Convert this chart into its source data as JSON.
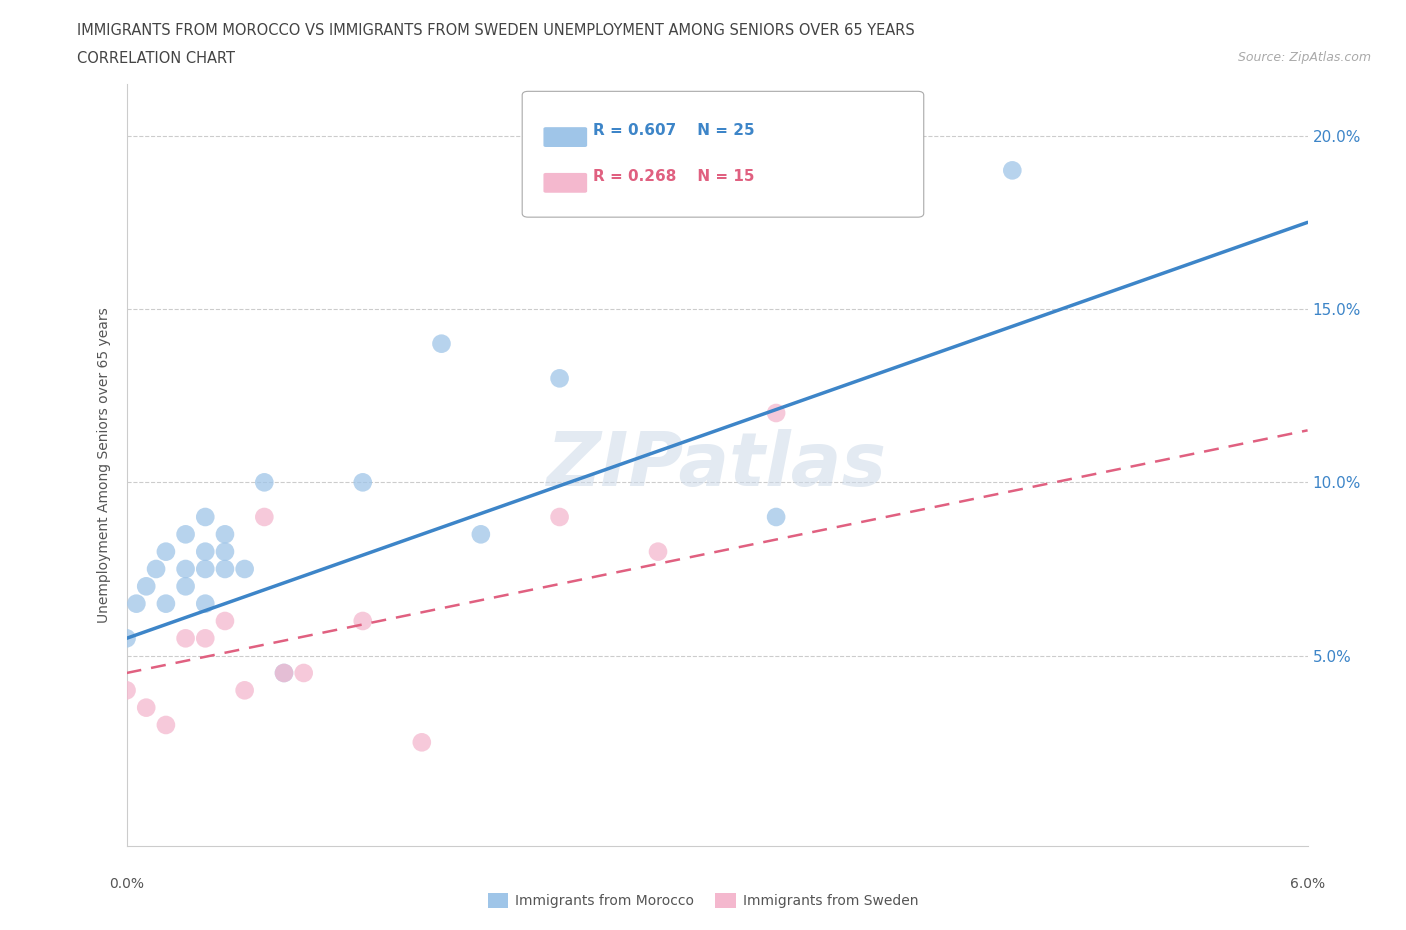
{
  "title_line1": "IMMIGRANTS FROM MOROCCO VS IMMIGRANTS FROM SWEDEN UNEMPLOYMENT AMONG SENIORS OVER 65 YEARS",
  "title_line2": "CORRELATION CHART",
  "source_text": "Source: ZipAtlas.com",
  "ylabel": "Unemployment Among Seniors over 65 years",
  "xlim": [
    0.0,
    0.06
  ],
  "ylim": [
    -0.005,
    0.215
  ],
  "yticks": [
    0.05,
    0.1,
    0.15,
    0.2
  ],
  "ytick_labels": [
    "5.0%",
    "10.0%",
    "15.0%",
    "20.0%"
  ],
  "morocco_R": 0.607,
  "morocco_N": 25,
  "sweden_R": 0.268,
  "sweden_N": 15,
  "morocco_color": "#9fc5e8",
  "sweden_color": "#f4b8ce",
  "morocco_line_color": "#3d85c8",
  "sweden_line_color": "#e06080",
  "watermark_text": "ZIPatlas",
  "watermark_color": "#ccd9e8",
  "background_color": "#ffffff",
  "grid_color": "#cccccc",
  "morocco_x": [
    0.0,
    0.0005,
    0.001,
    0.0015,
    0.002,
    0.002,
    0.003,
    0.003,
    0.003,
    0.004,
    0.004,
    0.004,
    0.004,
    0.005,
    0.005,
    0.005,
    0.006,
    0.007,
    0.008,
    0.012,
    0.016,
    0.018,
    0.022,
    0.033,
    0.045
  ],
  "morocco_y": [
    0.055,
    0.065,
    0.07,
    0.075,
    0.065,
    0.08,
    0.07,
    0.075,
    0.085,
    0.065,
    0.075,
    0.08,
    0.09,
    0.075,
    0.085,
    0.08,
    0.075,
    0.1,
    0.045,
    0.1,
    0.14,
    0.085,
    0.13,
    0.09,
    0.19
  ],
  "sweden_x": [
    0.0,
    0.001,
    0.002,
    0.003,
    0.004,
    0.005,
    0.006,
    0.007,
    0.008,
    0.009,
    0.012,
    0.015,
    0.022,
    0.027,
    0.033
  ],
  "sweden_y": [
    0.04,
    0.035,
    0.03,
    0.055,
    0.055,
    0.06,
    0.04,
    0.09,
    0.045,
    0.045,
    0.06,
    0.025,
    0.09,
    0.08,
    0.12
  ],
  "morocco_line_x0": 0.0,
  "morocco_line_y0": 0.055,
  "morocco_line_x1": 0.06,
  "morocco_line_y1": 0.175,
  "sweden_line_x0": 0.0,
  "sweden_line_y0": 0.045,
  "sweden_line_x1": 0.06,
  "sweden_line_y1": 0.115
}
